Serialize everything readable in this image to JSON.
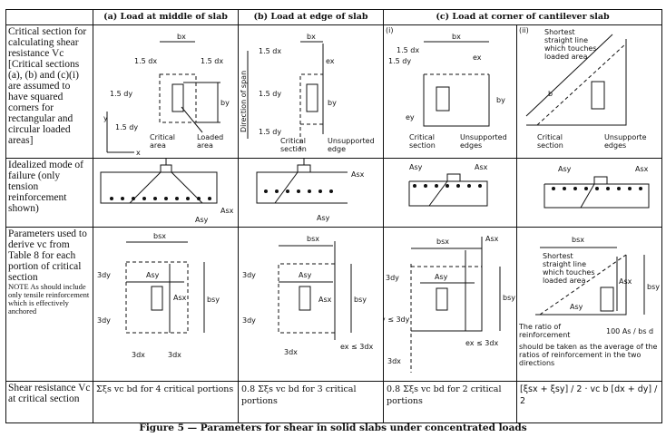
{
  "headers": {
    "a": "(a) Load at middle of slab",
    "b": "(b) Load at edge of slab",
    "c": "(c) Load at corner of cantilever slab"
  },
  "rows": {
    "critical": {
      "label": "Critical section for calculating shear resistance Vc [Critical sections (a), (b) and (c)(i) are assumed to have squared corners for rectangular and circular loaded areas]"
    },
    "failure": {
      "label": "Idealized mode of failure (only tension reinforcement shown)"
    },
    "params": {
      "label": "Parameters used to derive vc from Table 8 for each portion of critical section",
      "note": "NOTE As should include only tensile reinforcement which is effectively anchored"
    },
    "shear": {
      "label": "Shear resistance Vc at critical section",
      "a": "Σξs vc bd for 4 critical portions",
      "b": "0.8 Σξs vc bd for 3 critical portions",
      "ci": "0.8 Σξs vc bd for 2 critical portions",
      "cii": "[ξsx + ξsy] / 2 · vc b [dx + dy] / 2"
    }
  },
  "diagram_labels": {
    "bx": "bx",
    "by": "by",
    "d15x": "1.5 dx",
    "d15y": "1.5 dy",
    "ex": "ex",
    "ey": "ey",
    "y": "y",
    "x": "x",
    "critical_area": "Critical area",
    "loaded_area": "Loaded area",
    "direction_span": "Direction of span",
    "critical_section": "Critical section",
    "unsupported_edge": "Unsupported edge",
    "unsupported_edges": "Unsupported edges",
    "unsupporte_edges": "Unsupporte edges",
    "i": "(i)",
    "ii": "(ii)",
    "shortest": "Shortest straight line which touches loaded area",
    "b": "b",
    "asx": "Asx",
    "asy": "Asy",
    "bsx": "bsx",
    "bsy": "bsy",
    "d3x": "3dx",
    "d3y": "3dy",
    "exle": "ex ≤ 3dx",
    "eyle": "ey ≤ 3dy",
    "ratio": "The ratio of reinforcement",
    "ratio_frac": "100 As / bs d",
    "ratio_rest": "should be taken as the average of the ratios of reinforcement in the two directions"
  },
  "caption": "Figure 5 — Parameters for shear in solid slabs under concentrated loads"
}
